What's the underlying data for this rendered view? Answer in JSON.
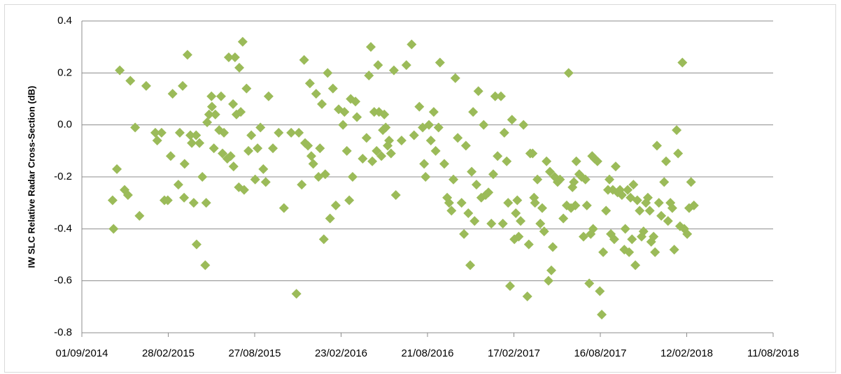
{
  "chart_data": {
    "type": "scatter",
    "y_label": "IW SLC Relative Radar Cross-Section (dB)",
    "color": "#9bbb59",
    "marker": "diamond",
    "grid": true,
    "xlim": [
      "2014-09-01",
      "2018-08-11"
    ],
    "xticks": [
      {
        "value": "2014-09-01",
        "label": "01/09/2014"
      },
      {
        "value": "2015-02-28",
        "label": "28/02/2015"
      },
      {
        "value": "2015-08-27",
        "label": "27/08/2015"
      },
      {
        "value": "2016-02-23",
        "label": "23/02/2016"
      },
      {
        "value": "2016-08-21",
        "label": "21/08/2016"
      },
      {
        "value": "2017-02-17",
        "label": "17/02/2017"
      },
      {
        "value": "2017-08-16",
        "label": "16/08/2017"
      },
      {
        "value": "2018-02-12",
        "label": "12/02/2018"
      },
      {
        "value": "2018-08-11",
        "label": "11/08/2018"
      }
    ],
    "ylim": [
      -0.8,
      0.4
    ],
    "yticks": [
      -0.8,
      -0.6,
      -0.4,
      -0.2,
      {
        "value": 0,
        "label": "0.0"
      },
      0.2,
      0.4
    ],
    "x": [
      "2014-11-04",
      "2014-11-06",
      "2014-11-13",
      "2014-11-19",
      "2014-11-29",
      "2014-12-06",
      "2014-12-11",
      "2014-12-21",
      "2014-12-30",
      "2015-01-13",
      "2015-02-01",
      "2015-02-05",
      "2015-02-14",
      "2015-02-20",
      "2015-02-27",
      "2015-03-05",
      "2015-03-09",
      "2015-03-21",
      "2015-03-24",
      "2015-03-30",
      "2015-04-02",
      "2015-04-03",
      "2015-04-09",
      "2015-04-15",
      "2015-04-18",
      "2015-04-22",
      "2015-04-27",
      "2015-04-28",
      "2015-05-04",
      "2015-05-10",
      "2015-05-16",
      "2015-05-18",
      "2015-05-20",
      "2015-05-24",
      "2015-05-29",
      "2015-05-30",
      "2015-06-03",
      "2015-06-06",
      "2015-06-14",
      "2015-06-18",
      "2015-06-21",
      "2015-06-24",
      "2015-07-01",
      "2015-07-04",
      "2015-07-08",
      "2015-07-13",
      "2015-07-14",
      "2015-07-17",
      "2015-07-20",
      "2015-07-25",
      "2015-07-26",
      "2015-07-29",
      "2015-08-02",
      "2015-08-05",
      "2015-08-10",
      "2015-08-14",
      "2015-08-20",
      "2015-08-28",
      "2015-09-02",
      "2015-09-08",
      "2015-09-14",
      "2015-09-19",
      "2015-09-25",
      "2015-10-04",
      "2015-10-16",
      "2015-10-27",
      "2015-11-11",
      "2015-11-22",
      "2015-11-27",
      "2015-12-03",
      "2015-12-08",
      "2015-12-10",
      "2015-12-16",
      "2015-12-20",
      "2015-12-23",
      "2015-12-27",
      "2016-01-02",
      "2016-01-07",
      "2016-01-10",
      "2016-01-14",
      "2016-01-18",
      "2016-01-21",
      "2016-01-26",
      "2016-01-31",
      "2016-02-06",
      "2016-02-12",
      "2016-02-18",
      "2016-02-27",
      "2016-03-01",
      "2016-03-06",
      "2016-03-11",
      "2016-03-14",
      "2016-03-18",
      "2016-03-24",
      "2016-03-27",
      "2016-04-08",
      "2016-04-16",
      "2016-04-21",
      "2016-04-25",
      "2016-04-28",
      "2016-05-02",
      "2016-05-07",
      "2016-05-10",
      "2016-05-12",
      "2016-05-17",
      "2016-05-20",
      "2016-05-23",
      "2016-05-26",
      "2016-05-30",
      "2016-06-02",
      "2016-06-06",
      "2016-06-12",
      "2016-06-16",
      "2016-06-28",
      "2016-07-08",
      "2016-07-19",
      "2016-07-24",
      "2016-08-04",
      "2016-08-11",
      "2016-08-14",
      "2016-08-17",
      "2016-08-24",
      "2016-08-28",
      "2016-09-03",
      "2016-09-07",
      "2016-09-13",
      "2016-09-16",
      "2016-09-25",
      "2016-10-01",
      "2016-10-05",
      "2016-10-10",
      "2016-10-14",
      "2016-10-18",
      "2016-10-23",
      "2016-10-31",
      "2016-11-05",
      "2016-11-09",
      "2016-11-14",
      "2016-11-18",
      "2016-11-21",
      "2016-11-24",
      "2016-11-27",
      "2016-12-01",
      "2016-12-05",
      "2016-12-11",
      "2016-12-16",
      "2016-12-20",
      "2016-12-26",
      "2017-01-01",
      "2017-01-05",
      "2017-01-09",
      "2017-01-14",
      "2017-01-21",
      "2017-01-25",
      "2017-01-28",
      "2017-02-02",
      "2017-02-05",
      "2017-02-09",
      "2017-02-13",
      "2017-02-18",
      "2017-02-21",
      "2017-02-24",
      "2017-02-27",
      "2017-03-03",
      "2017-03-09",
      "2017-03-17",
      "2017-03-20",
      "2017-03-23",
      "2017-03-28",
      "2017-03-31",
      "2017-04-02",
      "2017-04-07",
      "2017-04-13",
      "2017-04-17",
      "2017-04-21",
      "2017-04-26",
      "2017-04-30",
      "2017-05-03",
      "2017-05-06",
      "2017-05-09",
      "2017-05-13",
      "2017-05-19",
      "2017-05-24",
      "2017-05-31",
      "2017-06-07",
      "2017-06-11",
      "2017-06-16",
      "2017-06-19",
      "2017-06-22",
      "2017-06-25",
      "2017-06-27",
      "2017-07-03",
      "2017-07-08",
      "2017-07-12",
      "2017-07-16",
      "2017-07-19",
      "2017-07-24",
      "2017-07-27",
      "2017-07-30",
      "2017-08-01",
      "2017-08-04",
      "2017-08-10",
      "2017-08-15",
      "2017-08-19",
      "2017-08-22",
      "2017-08-28",
      "2017-09-01",
      "2017-09-04",
      "2017-09-07",
      "2017-09-11",
      "2017-09-14",
      "2017-09-17",
      "2017-09-21",
      "2017-09-26",
      "2017-09-30",
      "2017-10-05",
      "2017-10-07",
      "2017-10-12",
      "2017-10-15",
      "2017-10-18",
      "2017-10-21",
      "2017-10-24",
      "2017-10-28",
      "2017-11-01",
      "2017-11-06",
      "2017-11-10",
      "2017-11-14",
      "2017-11-19",
      "2017-11-23",
      "2017-11-27",
      "2017-11-30",
      "2017-12-05",
      "2017-12-08",
      "2017-12-12",
      "2017-12-16",
      "2017-12-21",
      "2017-12-27",
      "2017-12-31",
      "2018-01-04",
      "2018-01-09",
      "2018-01-13",
      "2018-01-17",
      "2018-01-22",
      "2018-01-25",
      "2018-01-29",
      "2018-02-03",
      "2018-02-07",
      "2018-02-13",
      "2018-02-17",
      "2018-02-21",
      "2018-02-27"
    ],
    "values": [
      -0.29,
      -0.4,
      -0.17,
      0.21,
      -0.25,
      -0.27,
      0.17,
      -0.01,
      -0.35,
      0.15,
      -0.03,
      -0.06,
      -0.03,
      -0.29,
      -0.29,
      -0.12,
      0.12,
      -0.23,
      -0.03,
      0.15,
      -0.28,
      -0.15,
      0.27,
      -0.04,
      -0.07,
      -0.3,
      -0.04,
      -0.46,
      -0.07,
      -0.2,
      -0.54,
      -0.3,
      0.01,
      0.04,
      0.11,
      0.07,
      -0.09,
      0.04,
      -0.02,
      0.11,
      -0.11,
      -0.03,
      -0.13,
      0.26,
      -0.12,
      0.08,
      -0.16,
      0.26,
      0.04,
      -0.24,
      0.22,
      0.05,
      0.32,
      -0.25,
      0.14,
      -0.1,
      -0.04,
      -0.21,
      -0.09,
      -0.01,
      -0.17,
      -0.22,
      0.11,
      -0.09,
      -0.03,
      -0.32,
      -0.03,
      -0.65,
      -0.03,
      -0.23,
      0.25,
      -0.07,
      -0.08,
      0.16,
      -0.12,
      -0.15,
      0.12,
      -0.2,
      -0.09,
      0.08,
      -0.44,
      -0.19,
      0.2,
      -0.36,
      0.14,
      -0.31,
      0.06,
      0.0,
      0.05,
      -0.1,
      -0.29,
      0.1,
      -0.2,
      0.09,
      0.03,
      -0.13,
      -0.05,
      0.19,
      0.3,
      -0.14,
      0.05,
      -0.1,
      0.23,
      0.05,
      -0.12,
      -0.02,
      0.04,
      -0.01,
      -0.08,
      -0.06,
      -0.11,
      0.21,
      -0.27,
      -0.06,
      0.23,
      0.31,
      -0.04,
      0.07,
      -0.01,
      -0.15,
      -0.2,
      0.0,
      -0.06,
      0.05,
      -0.1,
      -0.01,
      0.24,
      -0.15,
      -0.28,
      -0.3,
      -0.33,
      -0.21,
      0.18,
      -0.05,
      -0.3,
      -0.42,
      -0.08,
      -0.34,
      -0.54,
      -0.18,
      0.05,
      -0.37,
      -0.23,
      0.13,
      -0.28,
      0.0,
      -0.27,
      -0.26,
      -0.38,
      -0.19,
      0.11,
      -0.12,
      0.11,
      -0.38,
      -0.03,
      -0.14,
      -0.3,
      -0.62,
      0.02,
      -0.44,
      -0.34,
      -0.29,
      -0.43,
      -0.37,
      0.0,
      -0.66,
      -0.46,
      -0.11,
      -0.11,
      -0.28,
      -0.3,
      -0.21,
      -0.38,
      -0.32,
      -0.41,
      -0.14,
      -0.6,
      -0.18,
      -0.56,
      -0.47,
      -0.2,
      -0.22,
      -0.21,
      -0.36,
      -0.31,
      0.2,
      -0.32,
      -0.24,
      -0.22,
      -0.31,
      -0.14,
      -0.19,
      -0.2,
      -0.43,
      -0.21,
      -0.31,
      -0.61,
      -0.42,
      -0.12,
      -0.4,
      -0.13,
      -0.14,
      -0.64,
      -0.73,
      -0.49,
      -0.33,
      -0.25,
      -0.21,
      -0.42,
      -0.25,
      -0.44,
      -0.16,
      -0.26,
      -0.25,
      -0.27,
      -0.48,
      -0.4,
      -0.25,
      -0.49,
      -0.28,
      -0.44,
      -0.23,
      -0.54,
      -0.29,
      -0.33,
      -0.43,
      -0.41,
      -0.3,
      -0.28,
      -0.33,
      -0.45,
      -0.43,
      -0.49,
      -0.08,
      -0.3,
      -0.35,
      -0.22,
      -0.14,
      -0.37,
      -0.3,
      -0.32,
      -0.48,
      -0.02,
      -0.11,
      -0.39,
      0.24,
      -0.4,
      -0.42,
      -0.32,
      -0.22,
      -0.31
    ]
  }
}
